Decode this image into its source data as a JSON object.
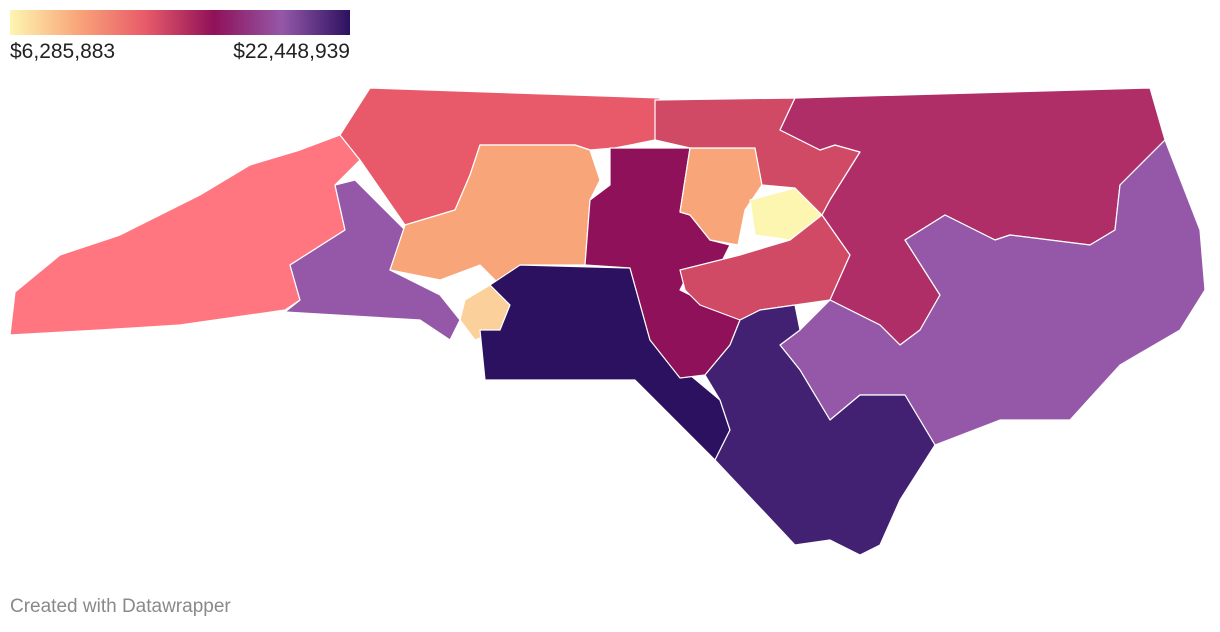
{
  "legend": {
    "gradient": [
      "#fdf6b0",
      "#f9a57a",
      "#e85a69",
      "#8f1159",
      "#9558a8",
      "#2c1160"
    ],
    "min": {
      "value": 6285883,
      "label": "$6,285,883"
    },
    "max": {
      "value": 22448939,
      "label": "$22,448,939"
    }
  },
  "regions": [
    {
      "color": "#ff7680"
    },
    {
      "color": "#9558a8"
    },
    {
      "color": "#e85a69"
    },
    {
      "color": "#f9a57a"
    },
    {
      "color": "#fbd09a"
    },
    {
      "color": "#2c1160"
    },
    {
      "color": "#8f1159"
    },
    {
      "color": "#f9a57a"
    },
    {
      "color": "#fdf6b0"
    },
    {
      "color": "#d04a66"
    },
    {
      "color": "#d04a66"
    },
    {
      "color": "#b02e68"
    },
    {
      "color": "#9558a8"
    },
    {
      "color": "#432172"
    }
  ],
  "credit": "Created with Datawrapper"
}
